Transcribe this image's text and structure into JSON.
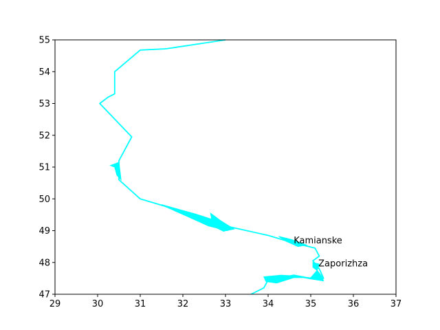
{
  "chart_data": {
    "type": "line",
    "title": "",
    "xlabel": "",
    "ylabel": "",
    "xlim": [
      29,
      37
    ],
    "ylim": [
      47,
      55
    ],
    "xticks": [
      "29",
      "30",
      "31",
      "32",
      "33",
      "34",
      "35",
      "36",
      "37"
    ],
    "yticks": [
      "47",
      "48",
      "49",
      "50",
      "51",
      "52",
      "53",
      "54",
      "55"
    ],
    "grid": false,
    "line_color": "#00ffff",
    "series": [
      {
        "points": [
          [
            33.0,
            55.0
          ],
          [
            32.5,
            54.9
          ],
          [
            32.0,
            54.8
          ],
          [
            31.6,
            54.72
          ],
          [
            31.0,
            54.68
          ],
          [
            30.4,
            54.0
          ],
          [
            30.4,
            53.3
          ],
          [
            30.25,
            53.2
          ],
          [
            30.05,
            53.0
          ],
          [
            30.8,
            51.95
          ],
          [
            30.5,
            51.2
          ],
          [
            30.5,
            50.6
          ],
          [
            31.0,
            50.0
          ],
          [
            31.5,
            49.8
          ],
          [
            32.0,
            49.6
          ],
          [
            32.5,
            49.4
          ],
          [
            33.0,
            49.15
          ],
          [
            33.5,
            49.0
          ],
          [
            34.0,
            48.85
          ],
          [
            34.5,
            48.65
          ],
          [
            35.1,
            48.45
          ],
          [
            35.2,
            48.2
          ],
          [
            35.05,
            48.05
          ],
          [
            35.2,
            47.8
          ],
          [
            35.3,
            47.5
          ],
          [
            35.0,
            47.5
          ],
          [
            34.6,
            47.6
          ],
          [
            34.2,
            47.5
          ],
          [
            34.0,
            47.45
          ],
          [
            33.9,
            47.2
          ],
          [
            33.6,
            47.0
          ]
        ]
      }
    ],
    "annotations": [
      {
        "text": "Kamianske",
        "x": 34.6,
        "y": 48.6
      },
      {
        "text": "Zaporizhza",
        "x": 35.18,
        "y": 47.88
      }
    ]
  }
}
